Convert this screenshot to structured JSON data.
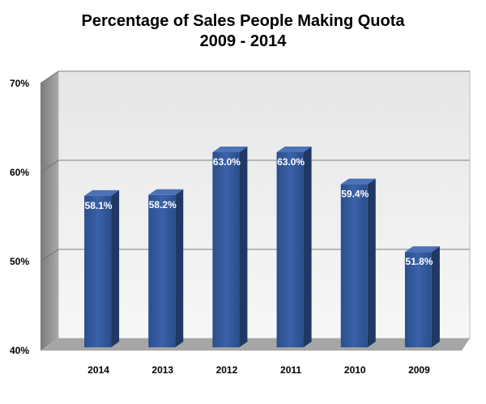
{
  "chart_data": {
    "type": "bar",
    "title": "Percentage of Sales People Making Quota",
    "subtitle": "2009 - 2014",
    "categories": [
      "2014",
      "2013",
      "2012",
      "2011",
      "2010",
      "2009"
    ],
    "values": [
      58.1,
      58.2,
      63.0,
      63.0,
      59.4,
      51.8
    ],
    "data_labels": [
      "58.1%",
      "58.2%",
      "63.0%",
      "63.0%",
      "59.4%",
      "51.8%"
    ],
    "y_ticks": [
      40,
      50,
      60,
      70
    ],
    "y_tick_labels": [
      "40%",
      "50%",
      "60%",
      "70%"
    ],
    "ylim": [
      40,
      70
    ],
    "xlabel": "",
    "ylabel": "",
    "grid": true,
    "legend": "none",
    "bar_color": "#2f5597"
  }
}
